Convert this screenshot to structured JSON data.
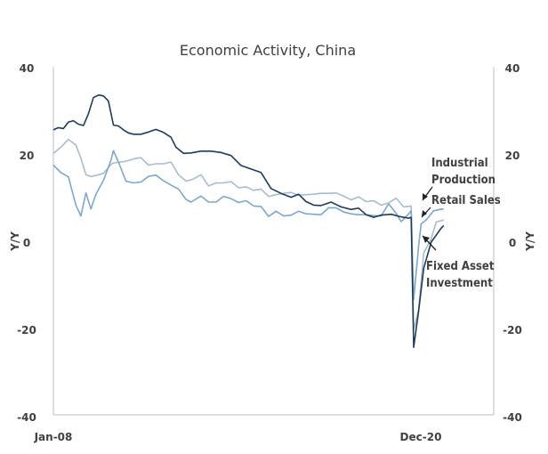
{
  "chart_data": {
    "type": "line",
    "title": "Economic Activity, China",
    "ylabel_left": "Y/Y",
    "ylabel_right": "Y/Y",
    "ylim": [
      -40,
      40
    ],
    "y_ticks": [
      "40",
      "20",
      "0",
      "-20",
      "-40"
    ],
    "x_ticks": [
      "Jan-08",
      "Dec-20"
    ],
    "x_range": [
      "2008-01",
      "2022-09"
    ],
    "grid": false,
    "series": [
      {
        "name": "Fixed Asset Investment",
        "color": "#1f3b5c",
        "points": [
          [
            "2008-01",
            25.5
          ],
          [
            "2008-03",
            26
          ],
          [
            "2008-05",
            25.8
          ],
          [
            "2008-07",
            27.3
          ],
          [
            "2008-09",
            27.6
          ],
          [
            "2008-11",
            26.8
          ],
          [
            "2009-01",
            26.5
          ],
          [
            "2009-03",
            29.2
          ],
          [
            "2009-05",
            32.9
          ],
          [
            "2009-07",
            33.5
          ],
          [
            "2009-09",
            33.3
          ],
          [
            "2009-11",
            32.1
          ],
          [
            "2010-01",
            26.6
          ],
          [
            "2010-03",
            26.4
          ],
          [
            "2010-05",
            25.5
          ],
          [
            "2010-07",
            24.8
          ],
          [
            "2010-09",
            24.5
          ],
          [
            "2010-12",
            24.5
          ],
          [
            "2011-03",
            25.0
          ],
          [
            "2011-06",
            25.6
          ],
          [
            "2011-09",
            24.9
          ],
          [
            "2011-12",
            23.8
          ],
          [
            "2012-02",
            21.5
          ],
          [
            "2012-05",
            20.1
          ],
          [
            "2012-08",
            20.2
          ],
          [
            "2012-12",
            20.6
          ],
          [
            "2013-04",
            20.6
          ],
          [
            "2013-08",
            20.3
          ],
          [
            "2013-12",
            19.6
          ],
          [
            "2014-04",
            17.3
          ],
          [
            "2014-08",
            16.5
          ],
          [
            "2014-12",
            15.7
          ],
          [
            "2015-04",
            12.0
          ],
          [
            "2015-08",
            10.9
          ],
          [
            "2015-12",
            10.0
          ],
          [
            "2016-03",
            10.7
          ],
          [
            "2016-06",
            9.0
          ],
          [
            "2016-09",
            8.2
          ],
          [
            "2016-12",
            8.1
          ],
          [
            "2017-04",
            8.9
          ],
          [
            "2017-08",
            7.8
          ],
          [
            "2017-12",
            7.2
          ],
          [
            "2018-03",
            7.5
          ],
          [
            "2018-06",
            6.0
          ],
          [
            "2018-09",
            5.4
          ],
          [
            "2018-12",
            5.9
          ],
          [
            "2019-04",
            6.1
          ],
          [
            "2019-08",
            5.5
          ],
          [
            "2019-11",
            5.2
          ],
          [
            "2019-12",
            5.4
          ],
          [
            "2020-01",
            -24.5
          ],
          [
            "2020-03",
            -16.1
          ],
          [
            "2020-05",
            -6.3
          ],
          [
            "2020-08",
            -0.3
          ],
          [
            "2020-12",
            2.9
          ],
          [
            "2021-01",
            3.5
          ]
        ]
      },
      {
        "name": "Industrial Production",
        "color": "#7da7c9",
        "points": [
          [
            "2008-01",
            17.4
          ],
          [
            "2008-04",
            15.7
          ],
          [
            "2008-07",
            14.7
          ],
          [
            "2008-10",
            8.2
          ],
          [
            "2008-12",
            5.7
          ],
          [
            "2009-02",
            11.0
          ],
          [
            "2009-04",
            7.3
          ],
          [
            "2009-06",
            10.7
          ],
          [
            "2009-09",
            13.9
          ],
          [
            "2009-12",
            18.5
          ],
          [
            "2010-01",
            20.7
          ],
          [
            "2010-03",
            18.1
          ],
          [
            "2010-06",
            13.7
          ],
          [
            "2010-09",
            13.3
          ],
          [
            "2010-12",
            13.5
          ],
          [
            "2011-03",
            14.8
          ],
          [
            "2011-06",
            15.1
          ],
          [
            "2011-09",
            13.8
          ],
          [
            "2011-12",
            12.8
          ],
          [
            "2012-03",
            11.9
          ],
          [
            "2012-06",
            9.5
          ],
          [
            "2012-08",
            8.9
          ],
          [
            "2012-12",
            10.3
          ],
          [
            "2013-03",
            8.9
          ],
          [
            "2013-06",
            8.9
          ],
          [
            "2013-09",
            10.2
          ],
          [
            "2013-12",
            9.7
          ],
          [
            "2014-03",
            8.8
          ],
          [
            "2014-06",
            9.2
          ],
          [
            "2014-09",
            8.0
          ],
          [
            "2014-12",
            7.9
          ],
          [
            "2015-03",
            5.6
          ],
          [
            "2015-06",
            6.8
          ],
          [
            "2015-09",
            5.7
          ],
          [
            "2015-12",
            5.9
          ],
          [
            "2016-03",
            6.8
          ],
          [
            "2016-06",
            6.2
          ],
          [
            "2016-09",
            6.1
          ],
          [
            "2016-12",
            6.0
          ],
          [
            "2017-03",
            7.6
          ],
          [
            "2017-06",
            7.6
          ],
          [
            "2017-09",
            6.6
          ],
          [
            "2017-12",
            6.2
          ],
          [
            "2018-03",
            6.0
          ],
          [
            "2018-06",
            6.0
          ],
          [
            "2018-09",
            5.8
          ],
          [
            "2018-12",
            5.7
          ],
          [
            "2019-03",
            8.5
          ],
          [
            "2019-06",
            6.3
          ],
          [
            "2019-08",
            4.4
          ],
          [
            "2019-11",
            6.2
          ],
          [
            "2019-12",
            6.9
          ],
          [
            "2020-01",
            -13.5
          ],
          [
            "2020-03",
            -1.1
          ],
          [
            "2020-04",
            3.9
          ],
          [
            "2020-06",
            4.8
          ],
          [
            "2020-09",
            6.9
          ],
          [
            "2020-12",
            7.3
          ],
          [
            "2021-01",
            7.2
          ]
        ]
      },
      {
        "name": "Retail Sales",
        "color": "#a9bccd",
        "points": [
          [
            "2008-01",
            20.1
          ],
          [
            "2008-04",
            21.5
          ],
          [
            "2008-07",
            23.3
          ],
          [
            "2008-10",
            22.0
          ],
          [
            "2008-12",
            19.0
          ],
          [
            "2009-02",
            15.2
          ],
          [
            "2009-04",
            14.8
          ],
          [
            "2009-06",
            15.0
          ],
          [
            "2009-09",
            15.5
          ],
          [
            "2009-12",
            17.5
          ],
          [
            "2010-01",
            17.9
          ],
          [
            "2010-03",
            18.0
          ],
          [
            "2010-06",
            18.3
          ],
          [
            "2010-09",
            18.8
          ],
          [
            "2010-12",
            19.1
          ],
          [
            "2011-03",
            17.4
          ],
          [
            "2011-06",
            17.7
          ],
          [
            "2011-09",
            17.7
          ],
          [
            "2011-12",
            18.1
          ],
          [
            "2012-03",
            15.2
          ],
          [
            "2012-06",
            13.7
          ],
          [
            "2012-09",
            14.2
          ],
          [
            "2012-12",
            15.2
          ],
          [
            "2013-03",
            12.6
          ],
          [
            "2013-06",
            13.3
          ],
          [
            "2013-09",
            13.3
          ],
          [
            "2013-12",
            13.6
          ],
          [
            "2014-03",
            12.2
          ],
          [
            "2014-06",
            12.4
          ],
          [
            "2014-09",
            11.6
          ],
          [
            "2014-12",
            11.9
          ],
          [
            "2015-03",
            10.2
          ],
          [
            "2015-06",
            10.6
          ],
          [
            "2015-09",
            10.9
          ],
          [
            "2015-12",
            11.1
          ],
          [
            "2016-03",
            10.5
          ],
          [
            "2016-06",
            10.6
          ],
          [
            "2016-09",
            10.7
          ],
          [
            "2016-12",
            10.9
          ],
          [
            "2017-03",
            10.9
          ],
          [
            "2017-06",
            11.0
          ],
          [
            "2017-09",
            10.3
          ],
          [
            "2017-12",
            9.4
          ],
          [
            "2018-03",
            10.1
          ],
          [
            "2018-06",
            9.0
          ],
          [
            "2018-09",
            9.2
          ],
          [
            "2018-12",
            8.2
          ],
          [
            "2019-03",
            8.7
          ],
          [
            "2019-06",
            9.8
          ],
          [
            "2019-09",
            7.8
          ],
          [
            "2019-12",
            8.0
          ],
          [
            "2020-01",
            -20.5
          ],
          [
            "2020-03",
            -15.8
          ],
          [
            "2020-05",
            -2.8
          ],
          [
            "2020-08",
            0.5
          ],
          [
            "2020-10",
            4.3
          ],
          [
            "2020-12",
            4.6
          ],
          [
            "2021-01",
            4.8
          ]
        ]
      }
    ],
    "annotations": [
      {
        "lines": [
          "Industrial",
          "Production"
        ],
        "series": "Industrial Production"
      },
      {
        "lines": [
          "Retail Sales"
        ],
        "series": "Retail Sales"
      },
      {
        "lines": [
          "Fixed Asset",
          "Investment"
        ],
        "series": "Fixed Asset Investment"
      }
    ]
  }
}
